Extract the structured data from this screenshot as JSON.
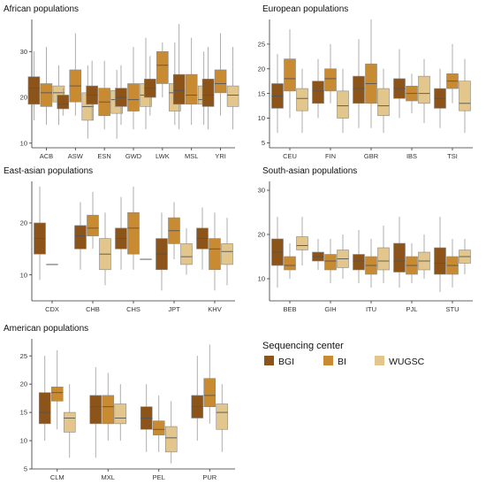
{
  "colors": {
    "BGI": "#8c5419",
    "BI": "#c98b31",
    "WUGSC": "#e2c68c"
  },
  "legend": {
    "title": "Sequencing center",
    "items": [
      "BGI",
      "BI",
      "WUGSC"
    ]
  },
  "chart_data": [
    {
      "type": "box",
      "title": "African populations",
      "ylim": [
        9,
        37
      ],
      "yticks": [
        10,
        20,
        30
      ],
      "categories": [
        "ACB",
        "ASW",
        "ESN",
        "GWD",
        "LWK",
        "MSL",
        "YRI"
      ],
      "series": [
        {
          "name": "BGI",
          "boxes": [
            {
              "min": 15,
              "q1": 18.5,
              "median": 22,
              "q3": 24.5,
              "max": 30
            },
            {
              "min": 16,
              "q1": 17.5,
              "median": 18.5,
              "q3": 20.5,
              "max": 22
            },
            {
              "min": 15,
              "q1": 18.5,
              "median": 20.5,
              "q3": 22.5,
              "max": 28
            },
            {
              "min": 14,
              "q1": 18,
              "median": 20,
              "q3": 22,
              "max": 27
            },
            {
              "min": 16,
              "q1": 20,
              "median": 22,
              "q3": 24,
              "max": 29
            },
            {
              "min": 13,
              "q1": 18.5,
              "median": 21.5,
              "q3": 25,
              "max": 36
            },
            {
              "min": 13,
              "q1": 18,
              "median": 20.5,
              "q3": 24,
              "max": 31
            }
          ]
        },
        {
          "name": "BI",
          "boxes": [
            {
              "min": 14,
              "q1": 18,
              "median": 21,
              "q3": 23,
              "max": 31
            },
            {
              "min": 16,
              "q1": 19,
              "median": 22.5,
              "q3": 26,
              "max": 34
            },
            {
              "min": 13,
              "q1": 16,
              "median": 19,
              "q3": 22,
              "max": 28
            },
            {
              "min": 13,
              "q1": 17,
              "median": 19.5,
              "q3": 23,
              "max": 31
            },
            {
              "min": 20,
              "q1": 23,
              "median": 27,
              "q3": 30,
              "max": 32
            },
            {
              "min": 14,
              "q1": 18.5,
              "median": 20.5,
              "q3": 25,
              "max": 33
            },
            {
              "min": 16,
              "q1": 21,
              "median": 23,
              "q3": 26,
              "max": 34
            }
          ]
        },
        {
          "name": "WUGSC",
          "boxes": [
            {
              "min": 14,
              "q1": 19,
              "median": 21,
              "q3": 22.5,
              "max": 27
            },
            {
              "min": 11,
              "q1": 15,
              "median": 18,
              "q3": 21,
              "max": 27
            },
            {
              "min": 11,
              "q1": 16.5,
              "median": 19.5,
              "q3": 21.5,
              "max": 26
            },
            {
              "min": 13,
              "q1": 18,
              "median": 20.5,
              "q3": 23,
              "max": 33
            },
            {
              "min": 14,
              "q1": 17,
              "median": 21,
              "q3": 23,
              "max": 32
            },
            {
              "min": 14,
              "q1": 18.5,
              "median": 19.5,
              "q3": 22.5,
              "max": 30
            },
            {
              "min": 13,
              "q1": 18,
              "median": 20.5,
              "q3": 22.5,
              "max": 31
            }
          ]
        }
      ]
    },
    {
      "type": "box",
      "title": "European populations",
      "ylim": [
        4,
        30
      ],
      "yticks": [
        5,
        10,
        15,
        20,
        25
      ],
      "categories": [
        "CEU",
        "FIN",
        "GBR",
        "IBS",
        "TSI"
      ],
      "series": [
        {
          "name": "BGI",
          "boxes": [
            {
              "min": 7,
              "q1": 12,
              "median": 14.5,
              "q3": 17,
              "max": 23
            },
            {
              "min": 10,
              "q1": 13,
              "median": 15.5,
              "q3": 17.5,
              "max": 22
            },
            {
              "min": 8,
              "q1": 13,
              "median": 16,
              "q3": 18.5,
              "max": 26
            },
            {
              "min": 10,
              "q1": 14,
              "median": 16,
              "q3": 18,
              "max": 24
            },
            {
              "min": 8,
              "q1": 12,
              "median": 14,
              "q3": 16,
              "max": 20
            }
          ]
        },
        {
          "name": "BI",
          "boxes": [
            {
              "min": 10,
              "q1": 15.5,
              "median": 18,
              "q3": 22,
              "max": 28
            },
            {
              "min": 13,
              "q1": 15.5,
              "median": 18,
              "q3": 20,
              "max": 25
            },
            {
              "min": 8,
              "q1": 13,
              "median": 17,
              "q3": 21,
              "max": 30
            },
            {
              "min": 11,
              "q1": 13.5,
              "median": 15,
              "q3": 16.5,
              "max": 19
            },
            {
              "min": 13,
              "q1": 16,
              "median": 17.5,
              "q3": 19,
              "max": 25
            }
          ]
        },
        {
          "name": "WUGSC",
          "boxes": [
            {
              "min": 7,
              "q1": 11.5,
              "median": 14,
              "q3": 16,
              "max": 20
            },
            {
              "min": 7,
              "q1": 10,
              "median": 12.5,
              "q3": 15.5,
              "max": 20
            },
            {
              "min": 7,
              "q1": 10.5,
              "median": 12.5,
              "q3": 16,
              "max": 20
            },
            {
              "min": 9,
              "q1": 13,
              "median": 15,
              "q3": 18.5,
              "max": 22
            },
            {
              "min": 7,
              "q1": 11.5,
              "median": 13,
              "q3": 17.5,
              "max": 22
            }
          ]
        }
      ]
    },
    {
      "type": "box",
      "title": "East-asian populations",
      "ylim": [
        5,
        28
      ],
      "yticks": [
        10,
        20
      ],
      "categories": [
        "CDX",
        "CHB",
        "CHS",
        "JPT",
        "KHV"
      ],
      "series": [
        {
          "name": "BGI",
          "boxes": [
            {
              "min": 9,
              "q1": 14,
              "median": 17,
              "q3": 20,
              "max": 27
            },
            {
              "min": 11,
              "q1": 15,
              "median": 17.5,
              "q3": 19.5,
              "max": 24
            },
            {
              "min": 11,
              "q1": 15,
              "median": 17,
              "q3": 19,
              "max": 25
            },
            {
              "min": 7,
              "q1": 11,
              "median": 14,
              "q3": 17,
              "max": 22
            },
            {
              "min": 11,
              "q1": 15,
              "median": 17,
              "q3": 19,
              "max": 23
            }
          ]
        },
        {
          "name": "BI",
          "boxes": [
            {
              "min": 12,
              "q1": 12,
              "median": 12,
              "q3": 12,
              "max": 12
            },
            {
              "min": 15,
              "q1": 17.5,
              "median": 19,
              "q3": 21.5,
              "max": 26
            },
            {
              "min": 11,
              "q1": 14,
              "median": 19,
              "q3": 22,
              "max": 27
            },
            {
              "min": 13,
              "q1": 16,
              "median": 18.5,
              "q3": 21,
              "max": 24
            },
            {
              "min": 7,
              "q1": 11,
              "median": 15,
              "q3": 17,
              "max": 22
            }
          ]
        },
        {
          "name": "WUGSC",
          "boxes": [
            {
              "min": null,
              "q1": null,
              "median": null,
              "q3": null,
              "max": null
            },
            {
              "min": 8,
              "q1": 11,
              "median": 14,
              "q3": 17,
              "max": 22
            },
            {
              "min": 13,
              "q1": 13,
              "median": 13,
              "q3": 13,
              "max": 13
            },
            {
              "min": 10,
              "q1": 12,
              "median": 13.5,
              "q3": 16,
              "max": 19
            },
            {
              "min": 8,
              "q1": 12,
              "median": 14.5,
              "q3": 16,
              "max": 21
            }
          ]
        }
      ]
    },
    {
      "type": "box",
      "title": "South-asian populations",
      "ylim": [
        5,
        32
      ],
      "yticks": [
        10,
        20,
        30
      ],
      "categories": [
        "BEB",
        "GIH",
        "ITU",
        "PJL",
        "STU"
      ],
      "series": [
        {
          "name": "BGI",
          "boxes": [
            {
              "min": 8,
              "q1": 13,
              "median": 16,
              "q3": 19,
              "max": 24
            },
            {
              "min": 12,
              "q1": 14,
              "median": 15,
              "q3": 16,
              "max": 19
            },
            {
              "min": 9,
              "q1": 12,
              "median": 14,
              "q3": 15.5,
              "max": 21
            },
            {
              "min": 8,
              "q1": 11.5,
              "median": 14,
              "q3": 18,
              "max": 24
            },
            {
              "min": 7,
              "q1": 11,
              "median": 13.5,
              "q3": 17,
              "max": 24
            }
          ]
        },
        {
          "name": "BI",
          "boxes": [
            {
              "min": 10,
              "q1": 12,
              "median": 13,
              "q3": 15,
              "max": 18
            },
            {
              "min": 9,
              "q1": 12,
              "median": 14,
              "q3": 15.5,
              "max": 19
            },
            {
              "min": 8,
              "q1": 11,
              "median": 13,
              "q3": 15,
              "max": 19
            },
            {
              "min": 9,
              "q1": 11,
              "median": 13,
              "q3": 15,
              "max": 18
            },
            {
              "min": 8,
              "q1": 11,
              "median": 13,
              "q3": 15,
              "max": 19
            }
          ]
        },
        {
          "name": "WUGSC",
          "boxes": [
            {
              "min": 13,
              "q1": 16.5,
              "median": 17.5,
              "q3": 19.5,
              "max": 24
            },
            {
              "min": 10,
              "q1": 12.5,
              "median": 14.5,
              "q3": 16.5,
              "max": 20
            },
            {
              "min": 9,
              "q1": 12,
              "median": 14,
              "q3": 17,
              "max": 22
            },
            {
              "min": 10,
              "q1": 12,
              "median": 14,
              "q3": 16,
              "max": 20
            },
            {
              "min": 11,
              "q1": 13.5,
              "median": 15,
              "q3": 16.5,
              "max": 19
            }
          ]
        }
      ]
    },
    {
      "type": "box",
      "title": "American populations",
      "ylim": [
        5,
        28
      ],
      "yticks": [
        5,
        10,
        15,
        20,
        25
      ],
      "categories": [
        "CLM",
        "MXL",
        "PEL",
        "PUR"
      ],
      "series": [
        {
          "name": "BGI",
          "boxes": [
            {
              "min": 10,
              "q1": 13,
              "median": 15,
              "q3": 18.5,
              "max": 25
            },
            {
              "min": 7,
              "q1": 13,
              "median": 16,
              "q3": 18,
              "max": 23
            },
            {
              "min": 8,
              "q1": 12,
              "median": 14,
              "q3": 16,
              "max": 20
            },
            {
              "min": 10,
              "q1": 14,
              "median": 16,
              "q3": 18,
              "max": 25
            }
          ]
        },
        {
          "name": "BI",
          "boxes": [
            {
              "min": 12,
              "q1": 17,
              "median": 18.5,
              "q3": 19.5,
              "max": 26
            },
            {
              "min": 10,
              "q1": 13,
              "median": 16,
              "q3": 18,
              "max": 22
            },
            {
              "min": 8,
              "q1": 11,
              "median": 12,
              "q3": 13.5,
              "max": 18
            },
            {
              "min": 13,
              "q1": 16,
              "median": 18,
              "q3": 21,
              "max": 27
            }
          ]
        },
        {
          "name": "WUGSC",
          "boxes": [
            {
              "min": 7,
              "q1": 11.5,
              "median": 14,
              "q3": 15,
              "max": 20
            },
            {
              "min": 10,
              "q1": 13,
              "median": 14,
              "q3": 16.5,
              "max": 20
            },
            {
              "min": 6,
              "q1": 8,
              "median": 10.5,
              "q3": 12.5,
              "max": 17
            },
            {
              "min": 8,
              "q1": 12,
              "median": 15,
              "q3": 16.5,
              "max": 20
            }
          ]
        }
      ]
    }
  ]
}
